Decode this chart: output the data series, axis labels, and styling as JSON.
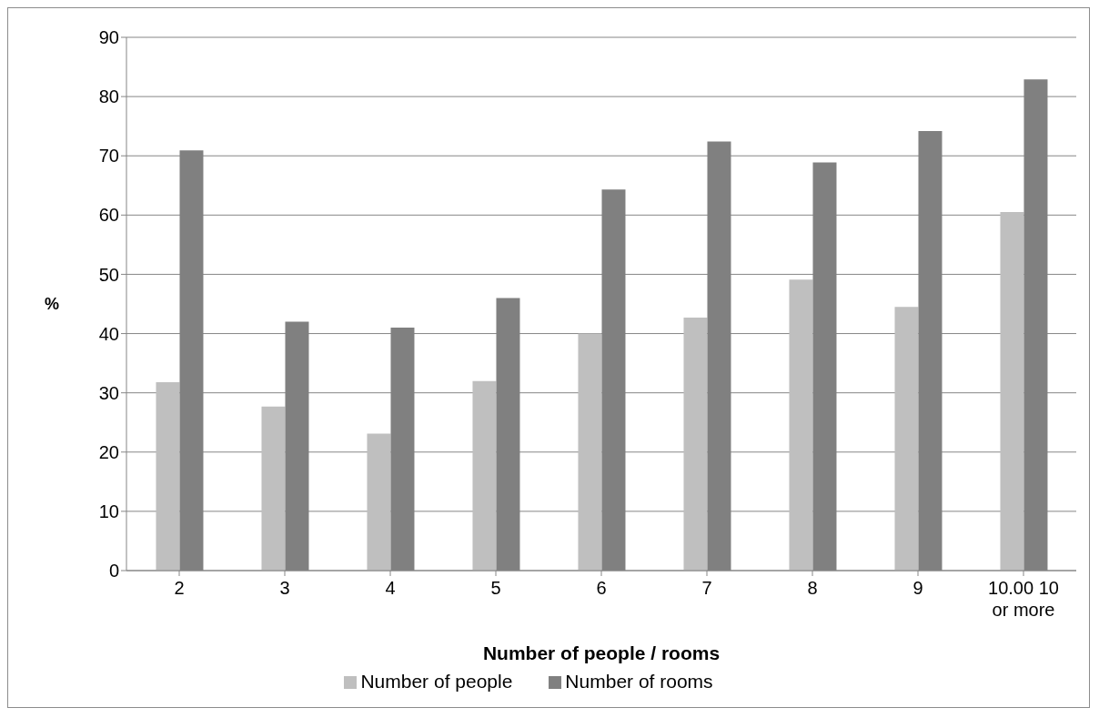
{
  "chart_data": {
    "type": "bar",
    "xlabel": "Number of people / rooms",
    "ylabel": "%",
    "categories": [
      "2",
      "3",
      "4",
      "5",
      "6",
      "7",
      "8",
      "9",
      "10.00 10 or more"
    ],
    "series": [
      {
        "name": "Number of people",
        "color": "#bfbfbf",
        "values": [
          31.8,
          27.7,
          23.1,
          32.0,
          40.0,
          42.7,
          49.1,
          44.5,
          60.5
        ]
      },
      {
        "name": "Number of rooms",
        "color": "#808080",
        "values": [
          70.9,
          42.0,
          41.0,
          46.0,
          64.3,
          72.4,
          68.9,
          74.2,
          82.9
        ]
      }
    ],
    "ylim": [
      0,
      90
    ],
    "yticks": [
      0,
      10,
      20,
      30,
      40,
      50,
      60,
      70,
      80,
      90
    ],
    "grid": "y",
    "legend": "bottom"
  }
}
